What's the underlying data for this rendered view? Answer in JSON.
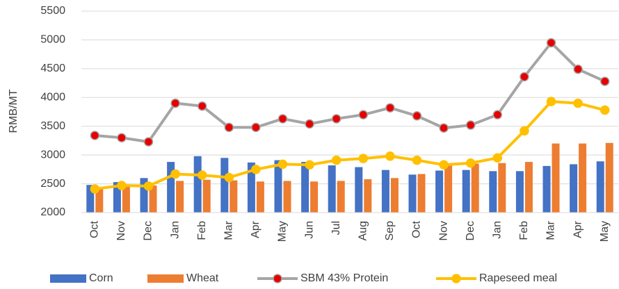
{
  "chart_data": {
    "type": "bar-line",
    "y_label": "RMB/MT",
    "categories": [
      "Oct",
      "Nov",
      "Dec",
      "Jan",
      "Feb",
      "Mar",
      "Apr",
      "May",
      "Jun",
      "Jul",
      "Aug",
      "Sep",
      "Oct",
      "Nov",
      "Dec",
      "Jan",
      "Feb",
      "Mar",
      "Apr",
      "May"
    ],
    "ylim": [
      2000,
      5500
    ],
    "yticks": [
      2000,
      2500,
      3000,
      3500,
      4000,
      4500,
      5000,
      5500
    ],
    "grid": true,
    "series": [
      {
        "name": "Corn",
        "kind": "bar",
        "color": "#4472c4",
        "values": [
          2480,
          2530,
          2600,
          2880,
          2980,
          2950,
          2870,
          2910,
          2880,
          2820,
          2790,
          2740,
          2660,
          2730,
          2740,
          2720,
          2720,
          2810,
          2840,
          2890
        ]
      },
      {
        "name": "Wheat",
        "kind": "bar",
        "color": "#ed7d31",
        "values": [
          2430,
          2460,
          2470,
          2550,
          2570,
          2560,
          2540,
          2550,
          2540,
          2550,
          2580,
          2600,
          2670,
          2820,
          2850,
          2860,
          2880,
          3200,
          3200,
          3210
        ]
      },
      {
        "name": "SBM 43% Protein",
        "kind": "line",
        "color": "#a5a5a5",
        "marker_color": "#e60000",
        "values": [
          3340,
          3300,
          3230,
          3900,
          3850,
          3480,
          3480,
          3630,
          3540,
          3630,
          3700,
          3820,
          3680,
          3470,
          3520,
          3700,
          4360,
          4950,
          4490,
          4280
        ]
      },
      {
        "name": "Rapeseed meal",
        "kind": "line",
        "color": "#ffc000",
        "marker_color": "#ffc000",
        "values": [
          2410,
          2470,
          2460,
          2670,
          2650,
          2610,
          2750,
          2840,
          2830,
          2910,
          2940,
          2980,
          2910,
          2830,
          2860,
          2950,
          3420,
          3930,
          3900,
          3780
        ]
      }
    ]
  }
}
